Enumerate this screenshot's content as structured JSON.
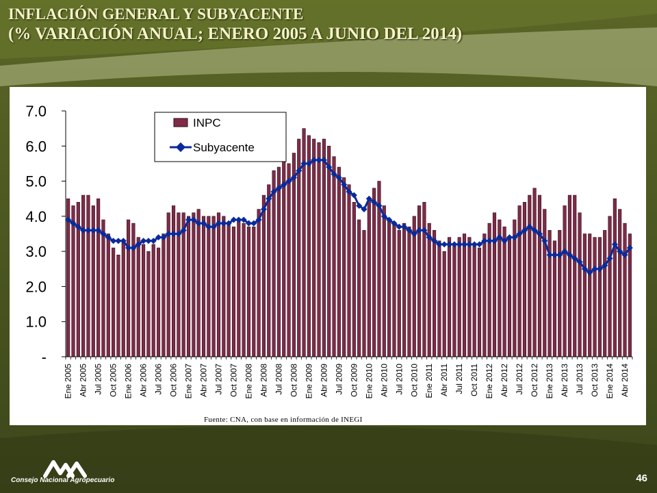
{
  "slide": {
    "title_line1": "INFLACIÓN GENERAL Y SUBYACENTE",
    "title_line2": "(% VARIACIÓN ANUAL; ENERO 2005  A JUNIO DEL 2014)",
    "source": "Fuente: CNA, con base en información de INEGI",
    "brand": "Consejo Nacional Agropecuario",
    "page_number": "46",
    "logo_icon": "cna-mountains-logo-icon"
  },
  "colors": {
    "bar": "#7f2b48",
    "line": "#0a2a9c",
    "background": "#4e5a22",
    "title": "#f6f3c8"
  },
  "chart_data": {
    "type": "bar",
    "title": "",
    "xlabel": "",
    "ylabel": "",
    "ylim": [
      0,
      7
    ],
    "yticks": [
      "-",
      "1.0",
      "2.0",
      "3.0",
      "4.0",
      "5.0",
      "6.0",
      "7.0"
    ],
    "grid": false,
    "legend_position": "top-center",
    "x_tick_labels": [
      "Ene 2005",
      "Abr 2005",
      "Jul 2005",
      "Oct 2005",
      "Ene 2006",
      "Abr 2006",
      "Jul 2006",
      "Oct 2006",
      "Ene 2007",
      "Abr 2007",
      "Jul 2007",
      "Oct 2007",
      "Ene 2008",
      "Abr 2008",
      "Jul 2008",
      "Oct 2008",
      "Ene 2009",
      "Abr 2009",
      "Jul 2009",
      "Oct 2009",
      "Ene 2010",
      "Abr 2010",
      "Jul 2010",
      "Oct 2010",
      "Ene 2011",
      "Abr 2011",
      "Jul 2011",
      "Oct 2011",
      "Ene 2012",
      "Abr 2012",
      "Jul 2012",
      "Oct 2012",
      "Ene 2013",
      "Abr 2013",
      "Jul 2013",
      "Oct 2013",
      "Ene 2014",
      "Abr 2014"
    ],
    "series": [
      {
        "name": "INPC",
        "type": "bar",
        "values": [
          4.5,
          4.3,
          4.4,
          4.6,
          4.6,
          4.3,
          4.5,
          3.9,
          3.5,
          3.1,
          2.9,
          3.3,
          3.9,
          3.8,
          3.4,
          3.2,
          3.0,
          3.2,
          3.1,
          3.5,
          4.1,
          4.3,
          4.1,
          4.1,
          4.0,
          4.1,
          4.2,
          4.0,
          4.0,
          4.0,
          4.1,
          4.0,
          3.8,
          3.7,
          3.9,
          3.8,
          3.7,
          3.7,
          4.2,
          4.6,
          4.9,
          5.3,
          5.4,
          5.6,
          5.5,
          5.8,
          6.2,
          6.5,
          6.3,
          6.2,
          6.1,
          6.2,
          6.0,
          5.7,
          5.4,
          5.1,
          4.9,
          4.4,
          3.9,
          3.6,
          4.5,
          4.8,
          5.0,
          4.3,
          3.9,
          3.8,
          3.6,
          3.8,
          3.7,
          4.0,
          4.3,
          4.4,
          3.8,
          3.6,
          3.3,
          3.0,
          3.4,
          3.2,
          3.4,
          3.5,
          3.4,
          3.2,
          3.1,
          3.5,
          3.8,
          4.1,
          3.9,
          3.7,
          3.4,
          3.9,
          4.3,
          4.4,
          4.6,
          4.8,
          4.6,
          4.2,
          3.6,
          3.3,
          3.6,
          4.3,
          4.6,
          4.6,
          4.1,
          3.5,
          3.5,
          3.4,
          3.4,
          3.6,
          4.0,
          4.5,
          4.2,
          3.8,
          3.5
        ]
      },
      {
        "name": "Subyacente",
        "type": "line",
        "values": [
          3.9,
          3.8,
          3.7,
          3.6,
          3.6,
          3.6,
          3.6,
          3.5,
          3.4,
          3.3,
          3.3,
          3.3,
          3.1,
          3.1,
          3.2,
          3.3,
          3.3,
          3.3,
          3.4,
          3.4,
          3.5,
          3.5,
          3.5,
          3.6,
          3.9,
          3.9,
          3.8,
          3.8,
          3.7,
          3.7,
          3.8,
          3.8,
          3.8,
          3.9,
          3.9,
          3.9,
          3.8,
          3.8,
          3.9,
          4.2,
          4.5,
          4.7,
          4.8,
          4.9,
          5.0,
          5.1,
          5.3,
          5.5,
          5.5,
          5.6,
          5.6,
          5.6,
          5.4,
          5.2,
          5.1,
          4.9,
          4.7,
          4.6,
          4.3,
          4.2,
          4.5,
          4.4,
          4.3,
          4.0,
          3.9,
          3.8,
          3.7,
          3.7,
          3.6,
          3.5,
          3.6,
          3.6,
          3.4,
          3.3,
          3.2,
          3.2,
          3.2,
          3.2,
          3.2,
          3.2,
          3.2,
          3.2,
          3.2,
          3.3,
          3.3,
          3.3,
          3.4,
          3.3,
          3.4,
          3.4,
          3.5,
          3.6,
          3.7,
          3.6,
          3.5,
          3.3,
          2.9,
          2.9,
          2.9,
          3.0,
          2.9,
          2.8,
          2.7,
          2.5,
          2.4,
          2.5,
          2.5,
          2.6,
          2.8,
          3.2,
          3.0,
          2.9,
          3.1
        ]
      }
    ]
  }
}
